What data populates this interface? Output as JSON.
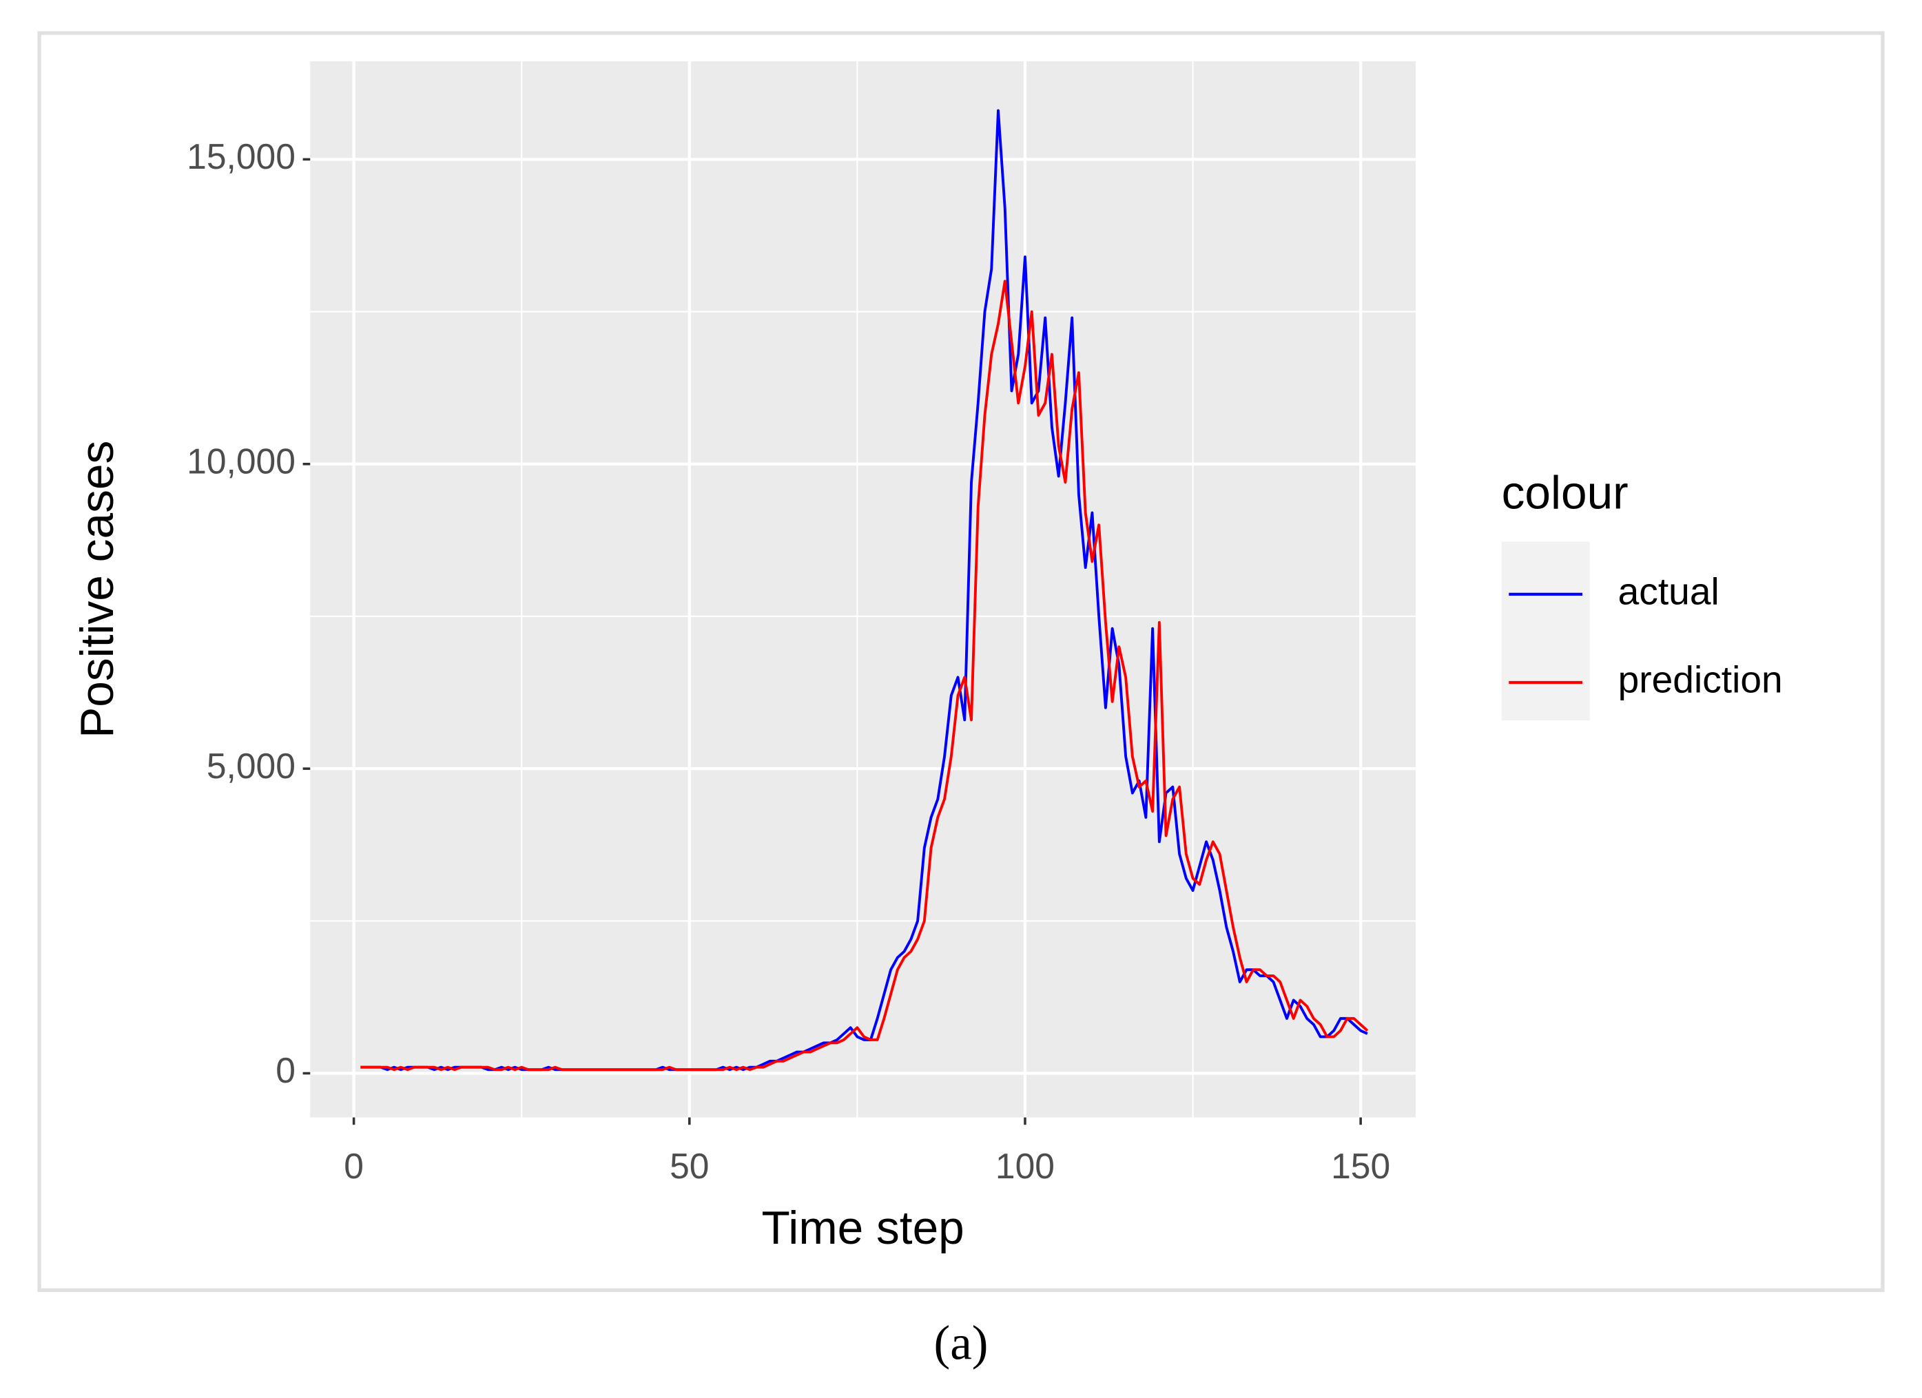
{
  "chart_data": {
    "type": "line",
    "xlabel": "Time step",
    "ylabel": "Positive cases",
    "caption": "(a)",
    "legend_title": "colour",
    "x": [
      1,
      2,
      3,
      4,
      5,
      6,
      7,
      8,
      9,
      10,
      11,
      12,
      13,
      14,
      15,
      16,
      17,
      18,
      19,
      20,
      21,
      22,
      23,
      24,
      25,
      26,
      27,
      28,
      29,
      30,
      31,
      32,
      33,
      34,
      35,
      36,
      37,
      38,
      39,
      40,
      41,
      42,
      43,
      44,
      45,
      46,
      47,
      48,
      49,
      50,
      51,
      52,
      53,
      54,
      55,
      56,
      57,
      58,
      59,
      60,
      61,
      62,
      63,
      64,
      65,
      66,
      67,
      68,
      69,
      70,
      71,
      72,
      73,
      74,
      75,
      76,
      77,
      78,
      79,
      80,
      81,
      82,
      83,
      84,
      85,
      86,
      87,
      88,
      89,
      90,
      91,
      92,
      93,
      94,
      95,
      96,
      97,
      98,
      99,
      100,
      101,
      102,
      103,
      104,
      105,
      106,
      107,
      108,
      109,
      110,
      111,
      112,
      113,
      114,
      115,
      116,
      117,
      118,
      119,
      120,
      121,
      122,
      123,
      124,
      125,
      126,
      127,
      128,
      129,
      130,
      131,
      132,
      133,
      134,
      135,
      136,
      137,
      138,
      139,
      140,
      141,
      142,
      143,
      144,
      145,
      146,
      147,
      148,
      149,
      150,
      151
    ],
    "series": [
      {
        "name": "actual",
        "color": "#0000ff",
        "values": [
          100,
          100,
          100,
          100,
          60,
          100,
          60,
          100,
          100,
          100,
          100,
          60,
          100,
          60,
          100,
          100,
          100,
          100,
          100,
          60,
          60,
          100,
          60,
          100,
          60,
          60,
          60,
          60,
          100,
          60,
          60,
          60,
          60,
          60,
          60,
          60,
          60,
          60,
          60,
          60,
          60,
          60,
          60,
          60,
          60,
          100,
          60,
          60,
          60,
          60,
          60,
          60,
          60,
          60,
          100,
          60,
          100,
          60,
          100,
          100,
          150,
          200,
          200,
          250,
          300,
          350,
          350,
          400,
          450,
          500,
          500,
          550,
          650,
          750,
          600,
          550,
          550,
          900,
          1300,
          1700,
          1900,
          2000,
          2200,
          2500,
          3700,
          4200,
          4500,
          5200,
          6200,
          6500,
          5800,
          9700,
          11000,
          12500,
          13200,
          15800,
          14200,
          11200,
          11800,
          13400,
          11000,
          11200,
          12400,
          10600,
          9800,
          11000,
          12400,
          9500,
          8300,
          9200,
          7500,
          6000,
          7300,
          6700,
          5200,
          4600,
          4800,
          4200,
          7300,
          3800,
          4600,
          4700,
          3600,
          3200,
          3000,
          3400,
          3800,
          3500,
          3000,
          2400,
          2000,
          1500,
          1700,
          1700,
          1600,
          1600,
          1500,
          1200,
          900,
          1200,
          1100,
          900,
          800,
          600,
          600,
          700,
          900,
          900,
          800,
          700,
          650
        ]
      },
      {
        "name": "prediction",
        "color": "#ff0000",
        "values": [
          100,
          100,
          100,
          100,
          100,
          60,
          100,
          60,
          100,
          100,
          100,
          100,
          60,
          100,
          60,
          100,
          100,
          100,
          100,
          100,
          60,
          60,
          100,
          60,
          100,
          60,
          60,
          60,
          60,
          100,
          60,
          60,
          60,
          60,
          60,
          60,
          60,
          60,
          60,
          60,
          60,
          60,
          60,
          60,
          60,
          60,
          100,
          60,
          60,
          60,
          60,
          60,
          60,
          60,
          60,
          100,
          60,
          100,
          60,
          100,
          100,
          150,
          200,
          200,
          250,
          300,
          350,
          350,
          400,
          450,
          500,
          500,
          550,
          650,
          750,
          600,
          550,
          550,
          900,
          1300,
          1700,
          1900,
          2000,
          2200,
          2500,
          3700,
          4200,
          4500,
          5200,
          6200,
          6500,
          5800,
          9300,
          10800,
          11800,
          12300,
          13000,
          12000,
          11000,
          11600,
          12500,
          10800,
          11000,
          11800,
          10300,
          9700,
          10900,
          11500,
          9200,
          8400,
          9000,
          7400,
          6100,
          7000,
          6500,
          5200,
          4700,
          4800,
          4300,
          7400,
          3900,
          4500,
          4700,
          3600,
          3200,
          3100,
          3500,
          3800,
          3600,
          3000,
          2400,
          1900,
          1500,
          1700,
          1700,
          1600,
          1600,
          1500,
          1200,
          900,
          1200,
          1100,
          900,
          800,
          600,
          600,
          700,
          900,
          900,
          800,
          700
        ]
      }
    ],
    "xlim": [
      -6.5,
      158.2
    ],
    "ylim": [
      -724,
      16610
    ],
    "xticks": [
      0,
      50,
      100,
      150
    ],
    "yticks": [
      0,
      {
        "value": 5000,
        "label": "5,000"
      },
      {
        "value": 10000,
        "label": "10,000"
      },
      {
        "value": 15000,
        "label": "15,000"
      }
    ],
    "grid": true
  }
}
